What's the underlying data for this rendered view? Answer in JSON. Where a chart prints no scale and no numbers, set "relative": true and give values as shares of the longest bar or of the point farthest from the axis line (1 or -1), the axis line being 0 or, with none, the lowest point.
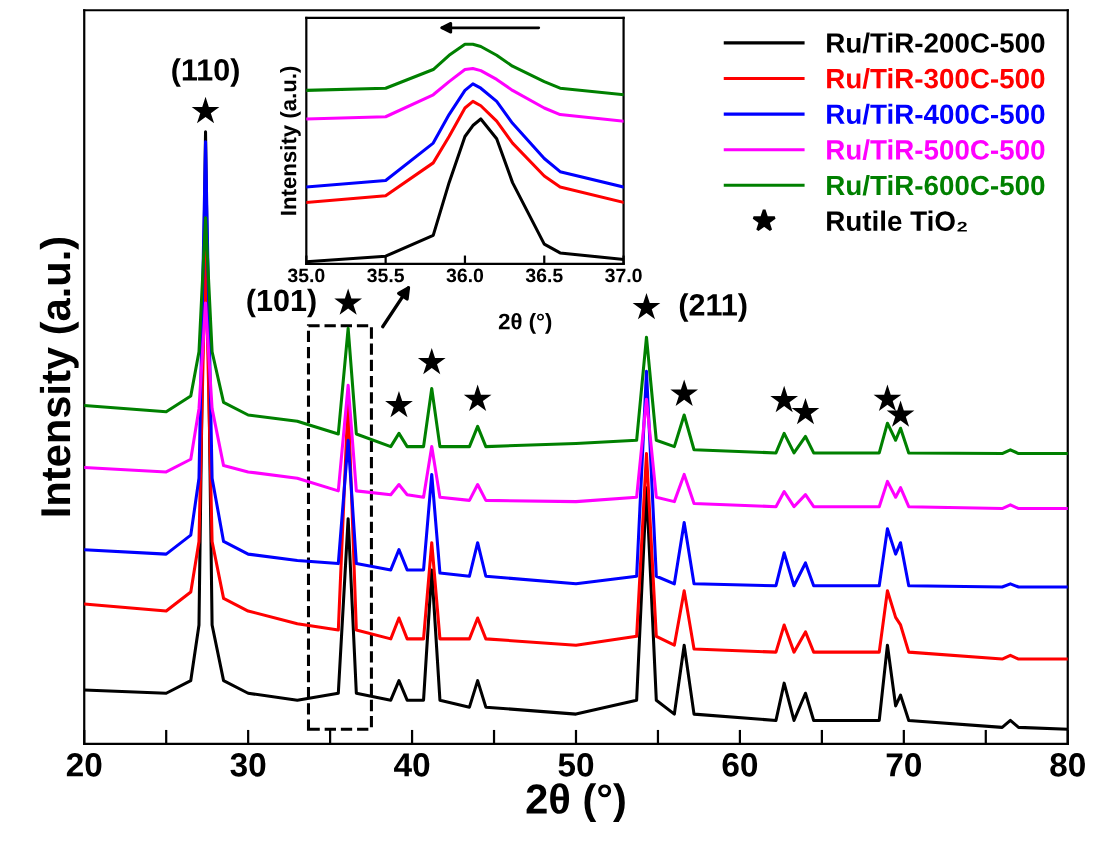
{
  "chart_data": [
    {
      "type": "line",
      "relative": true,
      "xlabel": "2θ (°)",
      "ylabel": "Intensity (a.u.)",
      "xlim": [
        20,
        80
      ],
      "xticks": [
        20,
        {
          "value": 25,
          "label": null
        },
        30,
        {
          "value": 35,
          "label": null
        },
        40,
        {
          "value": 45,
          "label": null
        },
        50,
        {
          "value": 55,
          "label": null
        },
        60,
        {
          "value": 65,
          "label": null
        },
        70,
        {
          "value": 75,
          "label": null
        },
        80
      ],
      "legend": "top right",
      "grid": false,
      "x": [
        20,
        25,
        26.5,
        27.0,
        27.4,
        27.8,
        28.5,
        30,
        33,
        35.5,
        36.1,
        36.6,
        38.7,
        39.2,
        39.7,
        40.7,
        41.2,
        41.7,
        43.5,
        44.0,
        44.5,
        50,
        53.7,
        54.3,
        54.9,
        56.0,
        56.6,
        57.2,
        62.2,
        62.7,
        63.3,
        64.0,
        64.5,
        68.5,
        69.0,
        69.5,
        69.8,
        70.3,
        76.0,
        76.5,
        77,
        80
      ],
      "series": [
        {
          "name": "Ru/TiR-200C-500",
          "color": "#000000",
          "values": [
            0.085,
            0.08,
            0.1,
            0.188,
            0.968,
            0.188,
            0.1,
            0.08,
            0.069,
            0.08,
            0.356,
            0.08,
            0.069,
            0.1,
            0.069,
            0.069,
            0.275,
            0.069,
            0.058,
            0.1,
            0.058,
            0.047,
            0.069,
            0.405,
            0.069,
            0.047,
            0.156,
            0.047,
            0.037,
            0.096,
            0.037,
            0.08,
            0.037,
            0.037,
            0.156,
            0.06,
            0.077,
            0.037,
            0.026,
            0.037,
            0.026,
            0.023
          ]
        },
        {
          "name": "Ru/TiR-300C-500",
          "color": "#ff0000",
          "values": [
            0.221,
            0.21,
            0.24,
            0.32,
            0.778,
            0.32,
            0.23,
            0.21,
            0.19,
            0.18,
            0.545,
            0.18,
            0.166,
            0.199,
            0.166,
            0.166,
            0.318,
            0.166,
            0.166,
            0.199,
            0.166,
            0.156,
            0.17,
            0.459,
            0.17,
            0.156,
            0.242,
            0.15,
            0.145,
            0.188,
            0.145,
            0.177,
            0.145,
            0.145,
            0.242,
            0.2,
            0.188,
            0.145,
            0.134,
            0.14,
            0.134,
            0.134
          ]
        },
        {
          "name": "Ru/TiR-400C-500",
          "color": "#0000ff",
          "values": [
            0.307,
            0.3,
            0.33,
            0.42,
            0.952,
            0.42,
            0.32,
            0.3,
            0.29,
            0.285,
            0.48,
            0.285,
            0.275,
            0.307,
            0.275,
            0.275,
            0.426,
            0.27,
            0.265,
            0.318,
            0.265,
            0.253,
            0.265,
            0.589,
            0.265,
            0.253,
            0.35,
            0.253,
            0.25,
            0.302,
            0.25,
            0.286,
            0.25,
            0.25,
            0.34,
            0.3,
            0.318,
            0.25,
            0.248,
            0.253,
            0.248,
            0.248
          ]
        },
        {
          "name": "Ru/TiR-500C-500",
          "color": "#ff00ff",
          "values": [
            0.437,
            0.43,
            0.45,
            0.53,
            0.697,
            0.53,
            0.44,
            0.43,
            0.42,
            0.4,
            0.567,
            0.4,
            0.394,
            0.41,
            0.394,
            0.39,
            0.47,
            0.39,
            0.385,
            0.41,
            0.385,
            0.383,
            0.39,
            0.545,
            0.39,
            0.383,
            0.426,
            0.38,
            0.375,
            0.399,
            0.375,
            0.394,
            0.375,
            0.375,
            0.415,
            0.39,
            0.405,
            0.375,
            0.372,
            0.378,
            0.372,
            0.372
          ]
        },
        {
          "name": "Ru/TiR-600C-500",
          "color": "#008000",
          "values": [
            0.535,
            0.525,
            0.55,
            0.62,
            0.832,
            0.62,
            0.54,
            0.52,
            0.51,
            0.49,
            0.657,
            0.49,
            0.47,
            0.491,
            0.47,
            0.47,
            0.562,
            0.47,
            0.47,
            0.502,
            0.47,
            0.475,
            0.48,
            0.643,
            0.48,
            0.47,
            0.52,
            0.465,
            0.46,
            0.491,
            0.46,
            0.486,
            0.46,
            0.46,
            0.507,
            0.48,
            0.499,
            0.46,
            0.459,
            0.465,
            0.459,
            0.459
          ]
        },
        {
          "name": "Rutile TiO₂",
          "type": "scatter",
          "marker": "star",
          "color": "#000000",
          "x": [
            27.4,
            36.1,
            39.2,
            41.2,
            44.0,
            54.3,
            56.6,
            62.7,
            64.0,
            69.0,
            69.8
          ],
          "values": [
            1.0,
            0.697,
            0.535,
            0.603,
            0.545,
            0.69,
            0.553,
            0.543,
            0.524,
            0.545,
            0.52
          ]
        }
      ],
      "annotations": [
        {
          "text": "(110)",
          "x": 27.4,
          "y": 1.0
        },
        {
          "text": "(101)",
          "x": 36.1,
          "y": 0.697
        },
        {
          "text": "(211)",
          "x": 54.3,
          "y": 0.69
        }
      ]
    },
    {
      "type": "line",
      "relative": true,
      "xlabel": "2θ (°)",
      "ylabel": "Intensity (a.u.)",
      "xlim": [
        35.0,
        37.0
      ],
      "xticks": [
        {
          "value": 35.0,
          "label": "35.0"
        },
        {
          "value": 35.5,
          "label": "35.5"
        },
        {
          "value": 36.0,
          "label": "36.0"
        },
        {
          "value": 36.5,
          "label": "36.5"
        },
        {
          "value": 37.0,
          "label": "37.0"
        }
      ],
      "grid": false,
      "legend": false,
      "x": [
        35.0,
        35.5,
        35.8,
        35.9,
        36.0,
        36.05,
        36.1,
        36.2,
        36.3,
        36.5,
        36.6,
        37.0
      ],
      "series": [
        {
          "color": "#000000",
          "values": [
            0.01,
            0.035,
            0.13,
            0.37,
            0.58,
            0.63,
            0.66,
            0.57,
            0.37,
            0.09,
            0.05,
            0.02
          ]
        },
        {
          "color": "#ff0000",
          "values": [
            0.28,
            0.31,
            0.46,
            0.58,
            0.71,
            0.74,
            0.72,
            0.65,
            0.55,
            0.4,
            0.35,
            0.28
          ]
        },
        {
          "color": "#0000ff",
          "values": [
            0.35,
            0.38,
            0.55,
            0.68,
            0.79,
            0.82,
            0.8,
            0.74,
            0.64,
            0.48,
            0.42,
            0.35
          ]
        },
        {
          "color": "#ff00ff",
          "values": [
            0.66,
            0.67,
            0.77,
            0.83,
            0.885,
            0.89,
            0.88,
            0.84,
            0.79,
            0.71,
            0.68,
            0.65
          ]
        },
        {
          "color": "#008000",
          "values": [
            0.79,
            0.8,
            0.885,
            0.95,
            1.0,
            1.0,
            0.99,
            0.95,
            0.9,
            0.83,
            0.8,
            0.77
          ]
        }
      ]
    }
  ]
}
